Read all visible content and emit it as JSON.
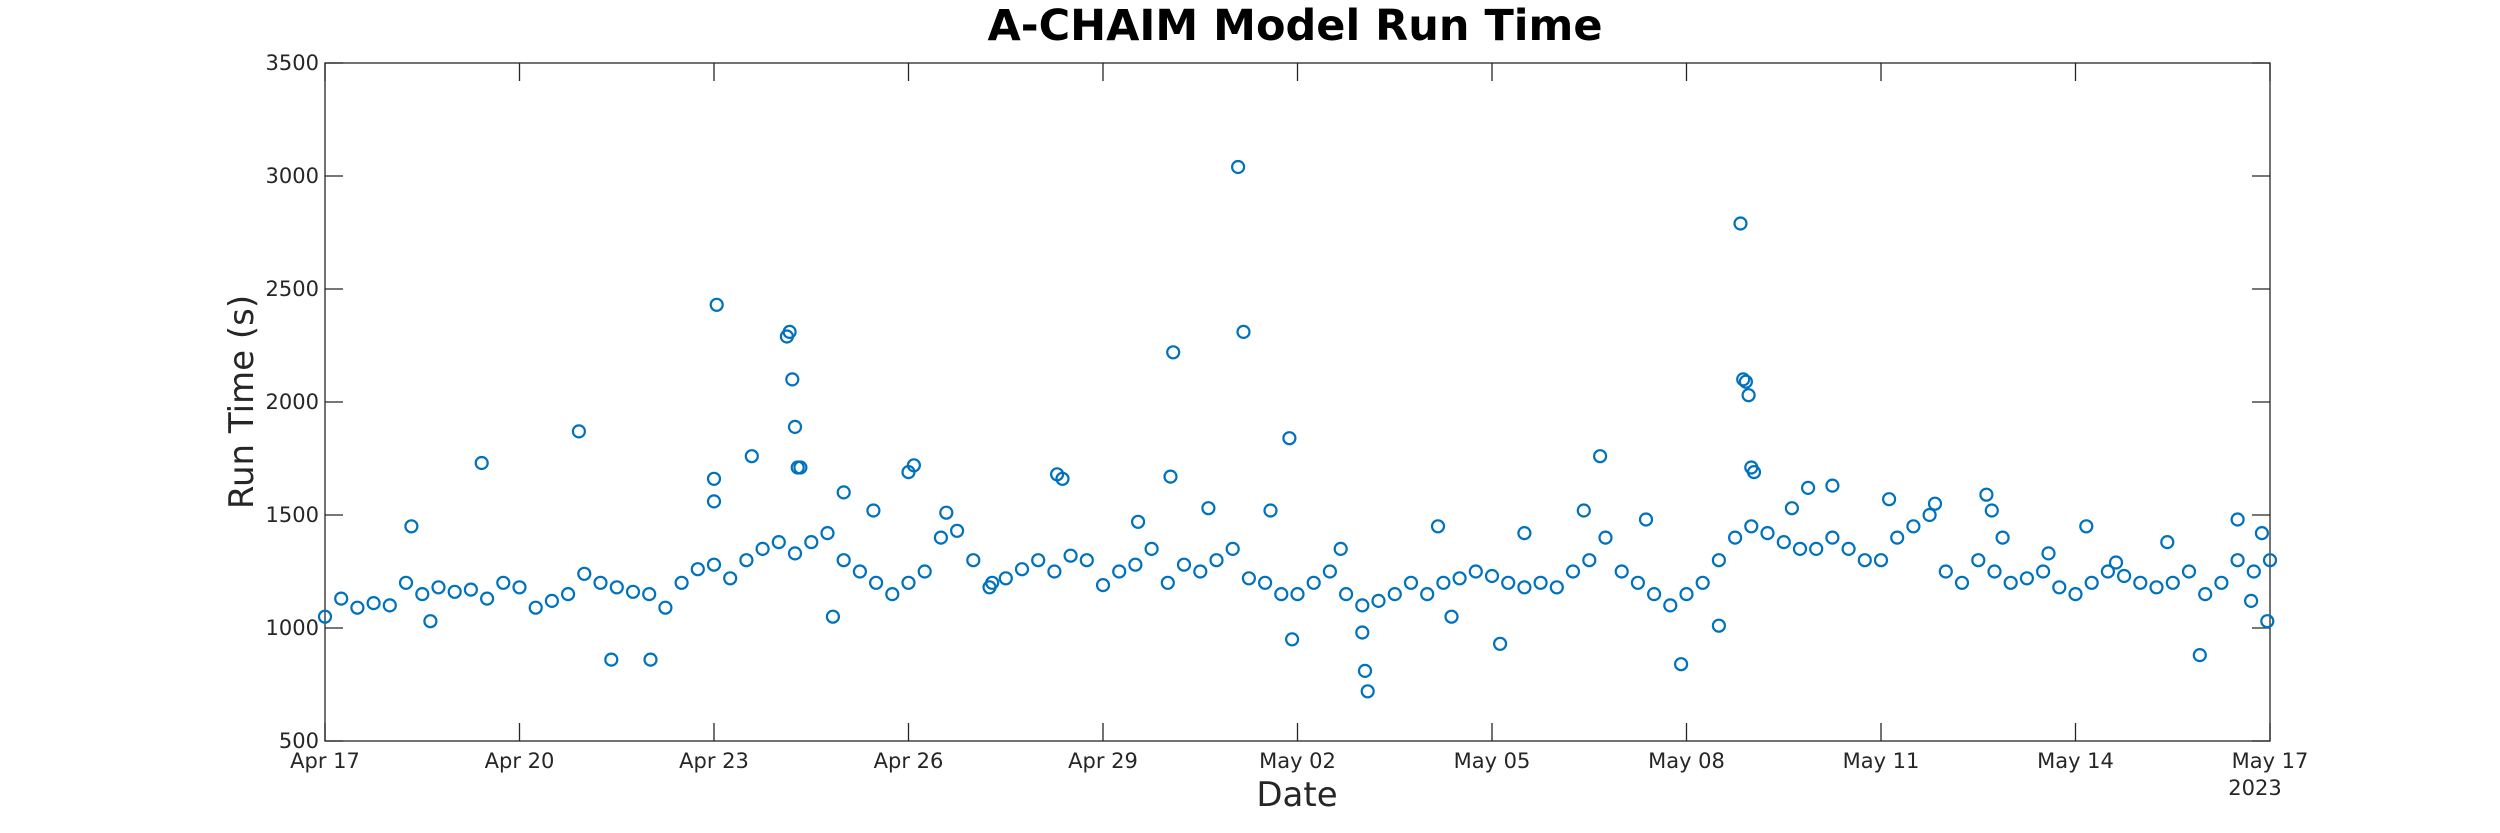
{
  "chart_data": {
    "type": "scatter",
    "title": "A-CHAIM Model Run Time",
    "xlabel": "Date",
    "ylabel": "Run Time (s)",
    "year_label": "2023",
    "x_tick_labels": [
      "Apr 17",
      "Apr 20",
      "Apr 23",
      "Apr 26",
      "Apr 29",
      "May 02",
      "May 05",
      "May 08",
      "May 11",
      "May 14",
      "May 17"
    ],
    "y_tick_labels": [
      "500",
      "1000",
      "1500",
      "2000",
      "2500",
      "3000",
      "3500"
    ],
    "ylim": [
      500,
      3500
    ],
    "xlim": [
      "2023-04-17",
      "2023-05-17"
    ],
    "marker": "open circle",
    "color": "#0072BD",
    "grid": false,
    "legend": "none",
    "series": [
      {
        "x": [
          "2023-04-17 00:00",
          "2023-04-17 06:00",
          "2023-04-17 12:00",
          "2023-04-17 18:00",
          "2023-04-18 00:00",
          "2023-04-18 06:00",
          "2023-04-18 12:00",
          "2023-04-18 18:00",
          "2023-04-19 00:00",
          "2023-04-19 06:00",
          "2023-04-19 12:00",
          "2023-04-19 18:00",
          "2023-04-20 00:00",
          "2023-04-20 06:00",
          "2023-04-20 12:00",
          "2023-04-20 18:00",
          "2023-04-21 00:00",
          "2023-04-21 06:00",
          "2023-04-21 12:00",
          "2023-04-21 18:00",
          "2023-04-22 00:00",
          "2023-04-22 06:00",
          "2023-04-22 12:00",
          "2023-04-22 18:00",
          "2023-04-23 00:00",
          "2023-04-23 06:00",
          "2023-04-23 12:00",
          "2023-04-23 18:00",
          "2023-04-24 00:00",
          "2023-04-24 06:00",
          "2023-04-24 12:00",
          "2023-04-24 18:00",
          "2023-04-25 00:00",
          "2023-04-25 06:00",
          "2023-04-25 12:00",
          "2023-04-25 18:00",
          "2023-04-26 00:00",
          "2023-04-26 06:00",
          "2023-04-26 12:00",
          "2023-04-26 18:00",
          "2023-04-27 00:00",
          "2023-04-27 06:00",
          "2023-04-27 12:00",
          "2023-04-27 18:00",
          "2023-04-28 00:00",
          "2023-04-28 06:00",
          "2023-04-28 12:00",
          "2023-04-28 18:00",
          "2023-04-29 00:00",
          "2023-04-29 06:00",
          "2023-04-29 12:00",
          "2023-04-29 18:00",
          "2023-04-30 00:00",
          "2023-04-30 06:00",
          "2023-04-30 12:00",
          "2023-04-30 18:00",
          "2023-05-01 00:00",
          "2023-05-01 06:00",
          "2023-05-01 12:00",
          "2023-05-01 18:00",
          "2023-05-02 00:00",
          "2023-05-02 06:00",
          "2023-05-02 12:00",
          "2023-05-02 18:00",
          "2023-05-03 00:00",
          "2023-05-03 06:00",
          "2023-05-03 12:00",
          "2023-05-03 18:00",
          "2023-05-04 00:00",
          "2023-05-04 06:00",
          "2023-05-04 12:00",
          "2023-05-04 18:00",
          "2023-05-05 00:00",
          "2023-05-05 06:00",
          "2023-05-05 12:00",
          "2023-05-05 18:00",
          "2023-05-06 00:00",
          "2023-05-06 06:00",
          "2023-05-06 12:00",
          "2023-05-06 18:00",
          "2023-05-07 00:00",
          "2023-05-07 06:00",
          "2023-05-07 12:00",
          "2023-05-07 18:00",
          "2023-05-08 00:00",
          "2023-05-08 06:00",
          "2023-05-08 12:00",
          "2023-05-08 18:00",
          "2023-05-09 00:00",
          "2023-05-09 06:00",
          "2023-05-09 12:00",
          "2023-05-09 18:00",
          "2023-05-10 00:00",
          "2023-05-10 06:00",
          "2023-05-10 12:00",
          "2023-05-10 18:00",
          "2023-05-11 00:00",
          "2023-05-11 06:00",
          "2023-05-11 12:00",
          "2023-05-11 18:00",
          "2023-05-12 00:00",
          "2023-05-12 06:00",
          "2023-05-12 12:00",
          "2023-05-12 18:00",
          "2023-05-13 00:00",
          "2023-05-13 06:00",
          "2023-05-13 12:00",
          "2023-05-13 18:00",
          "2023-05-14 00:00",
          "2023-05-14 06:00",
          "2023-05-14 12:00",
          "2023-05-14 18:00",
          "2023-05-15 00:00",
          "2023-05-15 06:00",
          "2023-05-15 12:00",
          "2023-05-15 18:00",
          "2023-05-16 00:00",
          "2023-05-16 06:00",
          "2023-05-16 12:00",
          "2023-05-16 18:00",
          "2023-05-17 00:00",
          "2023-04-19 10:00",
          "2023-04-20 22:00",
          "2023-04-22 00:30",
          "2023-04-23 00:00",
          "2023-04-23 00:00",
          "2023-04-23 01:00",
          "2023-04-24 03:00",
          "2023-04-24 04:00",
          "2023-04-24 05:00",
          "2023-04-24 06:00",
          "2023-04-24 07:00",
          "2023-04-24 08:00",
          "2023-04-25 00:00",
          "2023-04-26 00:00",
          "2023-04-26 02:00",
          "2023-04-28 07:00",
          "2023-04-28 09:00",
          "2023-04-30 01:00",
          "2023-04-30 02:00",
          "2023-05-01 02:00",
          "2023-05-01 04:00",
          "2023-05-01 21:00",
          "2023-05-01 22:00",
          "2023-05-03 00:00",
          "2023-05-03 01:00",
          "2023-05-03 02:00",
          "2023-05-05 03:00",
          "2023-05-06 16:00",
          "2023-05-07 22:00",
          "2023-05-08 20:00",
          "2023-05-08 21:00",
          "2023-05-08 22:00",
          "2023-05-08 23:00",
          "2023-05-09 00:00",
          "2023-05-09 01:00",
          "2023-05-12 15:00",
          "2023-05-12 17:00",
          "2023-05-15 22:00",
          "2023-05-16 12:00",
          "2023-05-16 23:00",
          "2023-04-18 08:00",
          "2023-04-18 15:00",
          "2023-04-21 10:00",
          "2023-04-23 14:00",
          "2023-04-24 20:00",
          "2023-04-25 11:00",
          "2023-04-26 14:00",
          "2023-04-27 07:00",
          "2023-04-29 13:00",
          "2023-04-30 15:00",
          "2023-05-01 14:00",
          "2023-05-02 16:00",
          "2023-05-04 04:00",
          "2023-05-04 09:00",
          "2023-05-05 12:00",
          "2023-05-06 10:00",
          "2023-05-07 09:00",
          "2023-05-08 12:00",
          "2023-05-09 15:00",
          "2023-05-09 21:00",
          "2023-05-10 06:00",
          "2023-05-11 03:00",
          "2023-05-11 20:00",
          "2023-05-12 21:00",
          "2023-05-13 14:00",
          "2023-05-14 04:00",
          "2023-05-14 15:00",
          "2023-05-15 10:00",
          "2023-05-16 17:00",
          "2023-05-16 21:00"
        ],
        "y": [
          1050,
          1130,
          1090,
          1110,
          1100,
          1200,
          1150,
          1180,
          1160,
          1170,
          1130,
          1200,
          1180,
          1090,
          1120,
          1150,
          1240,
          1200,
          1180,
          1160,
          1150,
          1090,
          1200,
          1260,
          1280,
          1220,
          1300,
          1350,
          1380,
          1330,
          1380,
          1420,
          1300,
          1250,
          1200,
          1150,
          1200,
          1250,
          1400,
          1430,
          1300,
          1180,
          1220,
          1260,
          1300,
          1250,
          1320,
          1300,
          1190,
          1250,
          1280,
          1350,
          1200,
          1280,
          1250,
          1300,
          1350,
          1220,
          1200,
          1150,
          1150,
          1200,
          1250,
          1150,
          1100,
          1120,
          1150,
          1200,
          1150,
          1200,
          1220,
          1250,
          1230,
          1200,
          1180,
          1200,
          1180,
          1250,
          1300,
          1400,
          1250,
          1200,
          1150,
          1100,
          1150,
          1200,
          1300,
          1400,
          1450,
          1420,
          1380,
          1350,
          1350,
          1400,
          1350,
          1300,
          1300,
          1400,
          1450,
          1500,
          1250,
          1200,
          1300,
          1250,
          1200,
          1220,
          1250,
          1180,
          1150,
          1200,
          1250,
          1230,
          1200,
          1180,
          1200,
          1250,
          1150,
          1200,
          1300,
          1250,
          1300,
          1730,
          1870,
          860,
          1660,
          1560,
          2430,
          2290,
          2310,
          2100,
          1890,
          1710,
          1710,
          1600,
          1690,
          1720,
          1680,
          1660,
          1670,
          2220,
          3040,
          2310,
          1840,
          950,
          980,
          810,
          720,
          930,
          1760,
          840,
          2790,
          2100,
          2090,
          2030,
          1710,
          1690,
          1590,
          1520,
          880,
          1480,
          1030,
          1450,
          1030,
          860,
          1760,
          1050,
          1520,
          1510,
          1200,
          1470,
          1530,
          1520,
          1350,
          1450,
          1050,
          1420,
          1520,
          1480,
          1010,
          1530,
          1620,
          1630,
          1570,
          1550,
          1400,
          1330,
          1450,
          1290,
          1380,
          1120,
          1420
        ]
      }
    ]
  }
}
